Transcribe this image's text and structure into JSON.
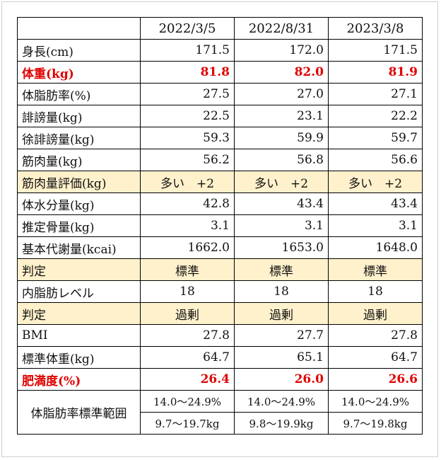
{
  "dates": [
    "2022/3/5",
    "2022/8/31",
    "2023/3/8"
  ],
  "rows": [
    {
      "label": "身長(cm)",
      "values": [
        "171.5",
        "172.0",
        "171.5"
      ]
    },
    {
      "label": "体重(kg)",
      "values": [
        "81.8",
        "82.0",
        "81.9"
      ]
    },
    {
      "label": "体脂肪率(%)",
      "values": [
        "27.5",
        "27.0",
        "27.1"
      ]
    },
    {
      "label": "誹謗量(kg)",
      "values": [
        "22.5",
        "23.1",
        "22.2"
      ]
    },
    {
      "label": "徐誹謗量(kg)",
      "values": [
        "59.3",
        "59.9",
        "59.7"
      ]
    },
    {
      "label": "筋肉量(kg)",
      "values": [
        "56.2",
        "56.8",
        "56.6"
      ]
    },
    {
      "label": "筋肉量評価(kg)",
      "values": [
        "多い　+2",
        "多い　+2",
        "多い　+2"
      ]
    },
    {
      "label": "体水分量(kg)",
      "values": [
        "42.8",
        "43.4",
        "43.4"
      ]
    },
    {
      "label": "推定骨量(kg)",
      "values": [
        "3.1",
        "3.1",
        "3.1"
      ]
    },
    {
      "label": "基本代謝量(kcai)",
      "values": [
        "1662.0",
        "1653.0",
        "1648.0"
      ]
    },
    {
      "label": "判定",
      "values": [
        "標準",
        "標準",
        "標準"
      ]
    },
    {
      "label": "内脂肪レベル",
      "values": [
        "18",
        "18",
        "18"
      ]
    },
    {
      "label": "判定",
      "values": [
        "過剰",
        "過剰",
        "過剰"
      ]
    },
    {
      "label": "BMI",
      "values": [
        "27.8",
        "27.7",
        "27.8"
      ]
    },
    {
      "label": "標準体重(kg)",
      "values": [
        "64.7",
        "65.1",
        "64.7"
      ]
    },
    {
      "label": "肥満度(%)",
      "values": [
        "26.4",
        "26.0",
        "26.6"
      ]
    }
  ],
  "range": {
    "label": "体脂肪率標準範囲",
    "percent": [
      "14.0～24.9%",
      "14.0～24.9%",
      "14.0～24.9%"
    ],
    "kg": [
      "9.7～19.7kg",
      "9.8～19.9kg",
      "9.7～19.8kg"
    ]
  },
  "colors": {
    "highlight_text": "#e00000",
    "highlight_row": "#fff1cc"
  }
}
